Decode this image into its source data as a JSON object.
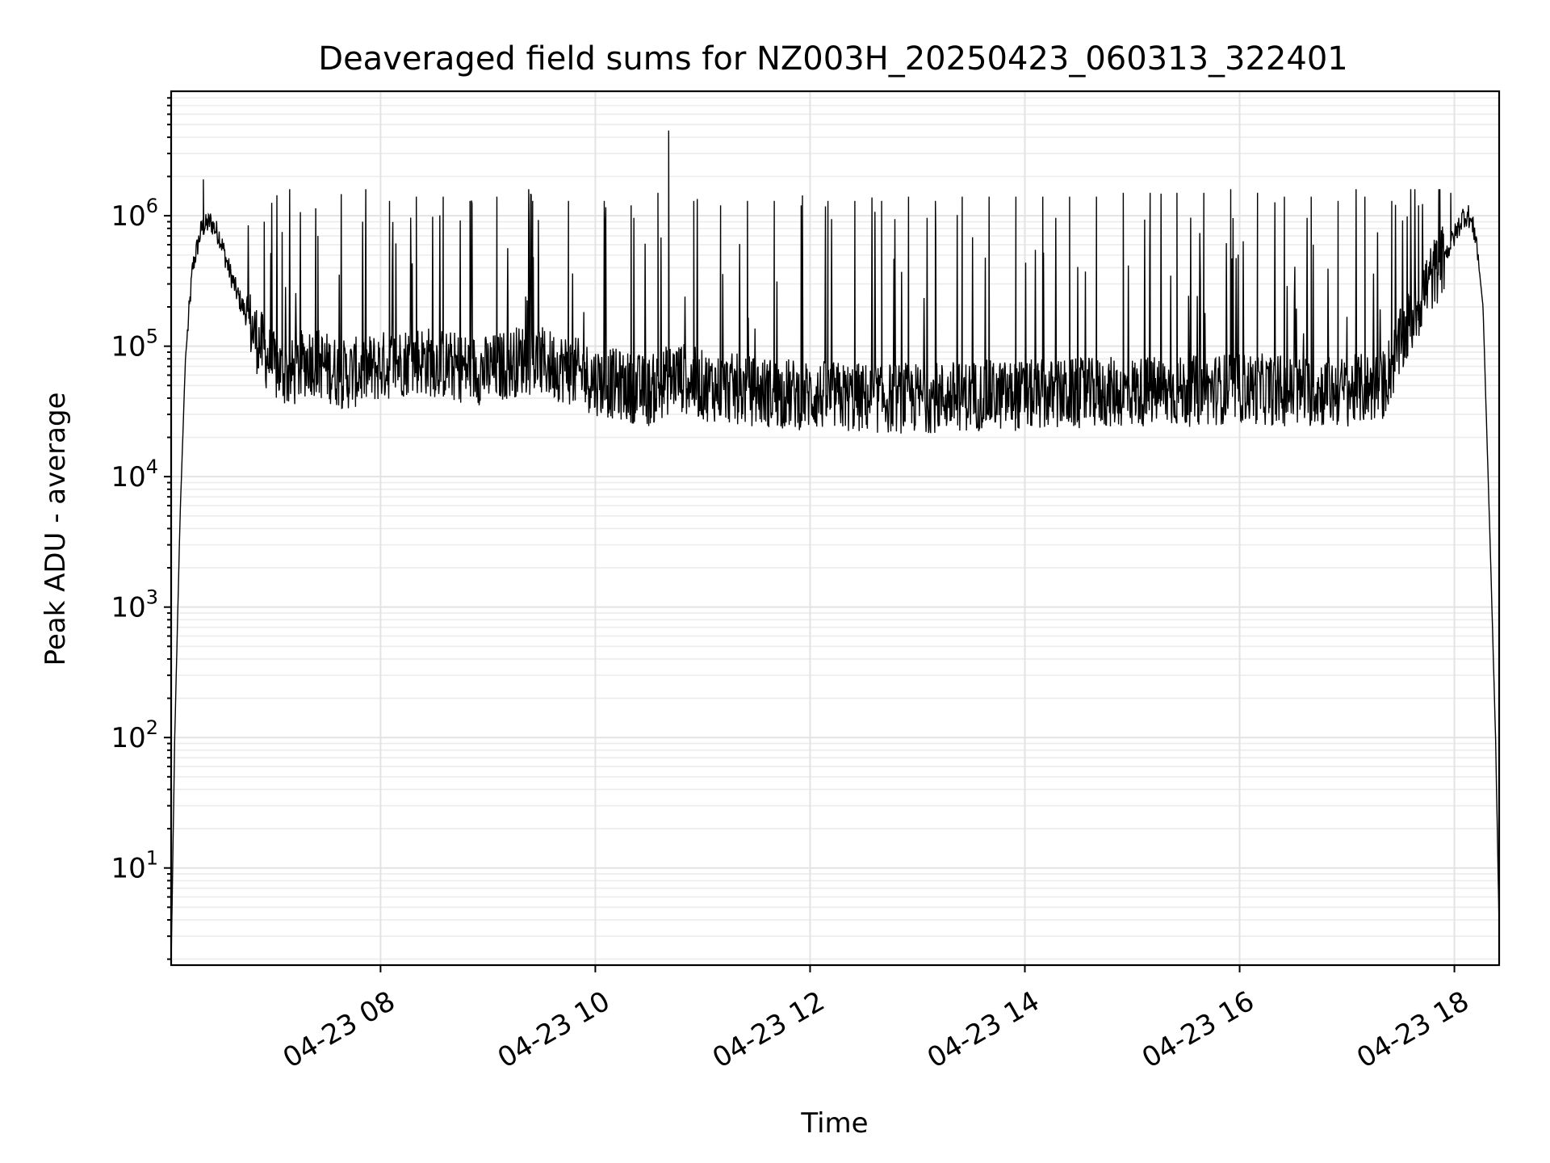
{
  "chart_data": {
    "type": "line",
    "title": "Deaveraged field sums for NZ003H_20250423_060313_322401",
    "xlabel": "Time",
    "ylabel": "Peak ADU - average",
    "yscale": "log",
    "ylim": [
      1.8,
      9000000
    ],
    "xlim": [
      "2025-04-23 06:03",
      "2025-04-23 18:25"
    ],
    "grid": true,
    "grid_minor": true,
    "line_color": "#000000",
    "x_ticks": [
      {
        "value": "2025-04-23 08:00",
        "label": "04-23 08"
      },
      {
        "value": "2025-04-23 10:00",
        "label": "04-23 10"
      },
      {
        "value": "2025-04-23 12:00",
        "label": "04-23 12"
      },
      {
        "value": "2025-04-23 14:00",
        "label": "04-23 14"
      },
      {
        "value": "2025-04-23 16:00",
        "label": "04-23 16"
      },
      {
        "value": "2025-04-23 18:00",
        "label": "04-23 18"
      }
    ],
    "y_ticks": [
      {
        "value": 10,
        "base": "10",
        "exp": "1"
      },
      {
        "value": 100,
        "base": "10",
        "exp": "2"
      },
      {
        "value": 1000,
        "base": "10",
        "exp": "3"
      },
      {
        "value": 10000,
        "base": "10",
        "exp": "4"
      },
      {
        "value": 100000,
        "base": "10",
        "exp": "5"
      },
      {
        "value": 1000000,
        "base": "10",
        "exp": "6"
      }
    ],
    "series": [
      {
        "x": [
          "2025-04-23 06:03",
          "2025-04-23 06:05",
          "2025-04-23 06:08",
          "2025-04-23 06:11",
          "2025-04-23 06:15",
          "2025-04-23 06:20",
          "2025-04-23 06:25",
          "2025-04-23 06:30",
          "2025-04-23 06:35",
          "2025-04-23 06:40",
          "2025-04-23 06:50",
          "2025-04-23 07:00",
          "2025-04-23 07:10",
          "2025-04-23 07:20",
          "2025-04-23 07:40",
          "2025-04-23 08:00",
          "2025-04-23 08:20",
          "2025-04-23 08:40",
          "2025-04-23 09:00",
          "2025-04-23 09:20",
          "2025-04-23 09:40",
          "2025-04-23 10:00",
          "2025-04-23 10:15",
          "2025-04-23 10:30",
          "2025-04-23 10:45",
          "2025-04-23 11:00",
          "2025-04-23 11:30",
          "2025-04-23 12:00",
          "2025-04-23 12:30",
          "2025-04-23 13:00",
          "2025-04-23 13:30",
          "2025-04-23 14:00",
          "2025-04-23 14:30",
          "2025-04-23 15:00",
          "2025-04-23 15:30",
          "2025-04-23 16:00",
          "2025-04-23 16:30",
          "2025-04-23 17:00",
          "2025-04-23 17:20",
          "2025-04-23 17:35",
          "2025-04-23 17:45",
          "2025-04-23 17:55",
          "2025-04-23 18:00",
          "2025-04-23 18:05",
          "2025-04-23 18:08",
          "2025-04-23 18:12",
          "2025-04-23 18:16",
          "2025-04-23 18:20",
          "2025-04-23 18:23",
          "2025-04-23 18:25"
        ],
        "y": [
          1.8,
          100,
          5000,
          80000,
          400000,
          800000,
          900000,
          700000,
          400000,
          250000,
          120000,
          70000,
          60000,
          80000,
          60000,
          70000,
          80000,
          70000,
          65000,
          80000,
          70000,
          55000,
          50000,
          45000,
          60000,
          50000,
          45000,
          42000,
          40000,
          40000,
          42000,
          42000,
          43000,
          45000,
          45000,
          48000,
          45000,
          45000,
          50000,
          150000,
          300000,
          500000,
          700000,
          1000000,
          1000000,
          700000,
          200000,
          3000,
          100,
          3.5
        ],
        "spikes": [
          {
            "x": "2025-04-23 06:21",
            "y": 1900000
          },
          {
            "x": "2025-04-23 06:55",
            "y": 900000
          },
          {
            "x": "2025-04-23 07:05",
            "y": 750000
          },
          {
            "x": "2025-04-23 07:25",
            "y": 700000
          },
          {
            "x": "2025-04-23 07:50",
            "y": 900000
          },
          {
            "x": "2025-04-23 08:05",
            "y": 1300000
          },
          {
            "x": "2025-04-23 08:20",
            "y": 1400000
          },
          {
            "x": "2025-04-23 08:35",
            "y": 1400000
          },
          {
            "x": "2025-04-23 08:50",
            "y": 1300000
          },
          {
            "x": "2025-04-23 09:05",
            "y": 1400000
          },
          {
            "x": "2025-04-23 09:25",
            "y": 1300000
          },
          {
            "x": "2025-04-23 09:45",
            "y": 1300000
          },
          {
            "x": "2025-04-23 10:05",
            "y": 1300000
          },
          {
            "x": "2025-04-23 10:20",
            "y": 1200000
          },
          {
            "x": "2025-04-23 10:35",
            "y": 1500000
          },
          {
            "x": "2025-04-23 10:41",
            "y": 4500000
          },
          {
            "x": "2025-04-23 10:55",
            "y": 1300000
          },
          {
            "x": "2025-04-23 11:10",
            "y": 1200000
          },
          {
            "x": "2025-04-23 11:25",
            "y": 1300000
          },
          {
            "x": "2025-04-23 11:40",
            "y": 1300000
          },
          {
            "x": "2025-04-23 11:55",
            "y": 1200000
          },
          {
            "x": "2025-04-23 12:10",
            "y": 1300000
          },
          {
            "x": "2025-04-23 12:25",
            "y": 1300000
          },
          {
            "x": "2025-04-23 12:40",
            "y": 1300000
          },
          {
            "x": "2025-04-23 12:55",
            "y": 1400000
          },
          {
            "x": "2025-04-23 13:10",
            "y": 1300000
          },
          {
            "x": "2025-04-23 13:25",
            "y": 1400000
          },
          {
            "x": "2025-04-23 13:40",
            "y": 1400000
          },
          {
            "x": "2025-04-23 13:55",
            "y": 1400000
          },
          {
            "x": "2025-04-23 14:10",
            "y": 1400000
          },
          {
            "x": "2025-04-23 14:25",
            "y": 1400000
          },
          {
            "x": "2025-04-23 14:40",
            "y": 1400000
          },
          {
            "x": "2025-04-23 14:55",
            "y": 1500000
          },
          {
            "x": "2025-04-23 15:10",
            "y": 1500000
          },
          {
            "x": "2025-04-23 15:25",
            "y": 1500000
          },
          {
            "x": "2025-04-23 15:40",
            "y": 1500000
          },
          {
            "x": "2025-04-23 15:55",
            "y": 1600000
          },
          {
            "x": "2025-04-23 16:10",
            "y": 1500000
          },
          {
            "x": "2025-04-23 16:25",
            "y": 1400000
          },
          {
            "x": "2025-04-23 16:40",
            "y": 1400000
          },
          {
            "x": "2025-04-23 16:55",
            "y": 1300000
          },
          {
            "x": "2025-04-23 17:10",
            "y": 1400000
          },
          {
            "x": "2025-04-23 17:25",
            "y": 1300000
          },
          {
            "x": "2025-04-23 17:40",
            "y": 1200000
          },
          {
            "x": "2025-04-23 17:58",
            "y": 1500000
          }
        ]
      }
    ]
  }
}
